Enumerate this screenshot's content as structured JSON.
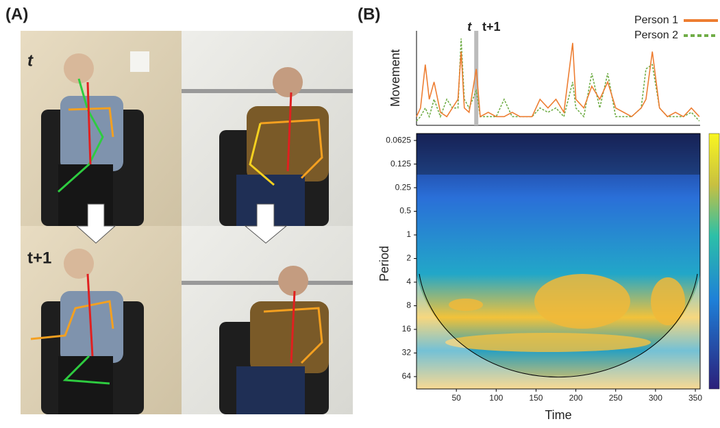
{
  "panel_a": {
    "label": "(A)",
    "frame_top": "t",
    "frame_bottom": "t+1"
  },
  "panel_b": {
    "label": "(B)"
  },
  "chart_data": [
    {
      "type": "line",
      "ylabel": "Movement",
      "marker_labels": [
        "t",
        "t+1"
      ],
      "marker_x": 75,
      "x": [
        0,
        5,
        11,
        16,
        22,
        30,
        38,
        45,
        52,
        56,
        60,
        66,
        75,
        80,
        90,
        100,
        110,
        120,
        130,
        145,
        155,
        165,
        175,
        185,
        196,
        200,
        210,
        220,
        230,
        240,
        250,
        260,
        270,
        282,
        288,
        296,
        305,
        315,
        325,
        335,
        345,
        355
      ],
      "xlim": [
        0,
        356
      ],
      "ylim": [
        0,
        1.05
      ],
      "legend": "top-right",
      "series": [
        {
          "name": "Person 1",
          "color": "#ed7d31",
          "dash": false,
          "values": [
            0.1,
            0.2,
            0.7,
            0.3,
            0.5,
            0.15,
            0.1,
            0.2,
            0.3,
            0.85,
            0.2,
            0.15,
            0.65,
            0.1,
            0.15,
            0.1,
            0.1,
            0.15,
            0.1,
            0.1,
            0.3,
            0.2,
            0.3,
            0.15,
            0.95,
            0.3,
            0.2,
            0.45,
            0.3,
            0.5,
            0.2,
            0.15,
            0.1,
            0.2,
            0.3,
            0.85,
            0.2,
            0.1,
            0.15,
            0.1,
            0.2,
            0.1
          ]
        },
        {
          "name": "Person 2",
          "color": "#70ad47",
          "dash": true,
          "values": [
            0.05,
            0.1,
            0.2,
            0.1,
            0.3,
            0.1,
            0.3,
            0.2,
            0.2,
            1.0,
            0.3,
            0.2,
            0.4,
            0.1,
            0.1,
            0.1,
            0.3,
            0.1,
            0.1,
            0.1,
            0.2,
            0.15,
            0.2,
            0.1,
            0.5,
            0.2,
            0.1,
            0.6,
            0.2,
            0.6,
            0.1,
            0.1,
            0.1,
            0.2,
            0.65,
            0.7,
            0.2,
            0.1,
            0.1,
            0.1,
            0.15,
            0.05
          ]
        }
      ]
    },
    {
      "type": "heatmap",
      "xlabel": "Time",
      "ylabel": "Period",
      "xlim": [
        0,
        356
      ],
      "xticks": [
        50,
        100,
        150,
        200,
        250,
        300,
        350
      ],
      "ylim": [
        0.051,
        92
      ],
      "log": true,
      "yticks": [
        0.0625,
        0.125,
        0.25,
        0.5,
        1,
        2,
        4,
        8,
        16,
        32,
        64
      ]
    }
  ]
}
